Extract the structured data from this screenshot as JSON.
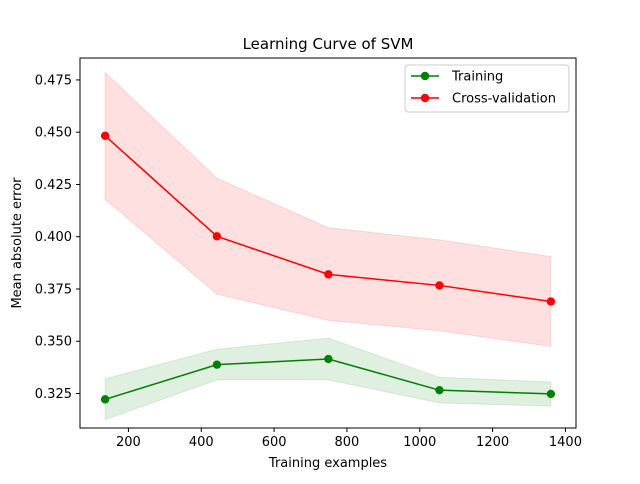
{
  "chart_data": {
    "type": "line",
    "title": "Learning Curve of SVM",
    "xlabel": "Training examples",
    "ylabel": "Mean absolute error",
    "xlim": [
      67,
      1429
    ],
    "ylim": [
      0.3085,
      0.4855
    ],
    "xticks": [
      200,
      400,
      600,
      800,
      1000,
      1200,
      1400
    ],
    "xtick_labels": [
      "200",
      "400",
      "600",
      "800",
      "1000",
      "1200",
      "1400"
    ],
    "yticks": [
      0.325,
      0.35,
      0.375,
      0.4,
      0.425,
      0.45,
      0.475
    ],
    "ytick_labels": [
      "0.325",
      "0.350",
      "0.375",
      "0.400",
      "0.425",
      "0.450",
      "0.475"
    ],
    "x": [
      136,
      443,
      749,
      1054,
      1360
    ],
    "legend_position": "top-right",
    "grid": false,
    "series": [
      {
        "name": "Training",
        "color": "#008000",
        "band_color": "#008000",
        "values": [
          0.3222,
          0.3388,
          0.3415,
          0.3266,
          0.3248
        ],
        "lower": [
          0.3125,
          0.3315,
          0.3315,
          0.3205,
          0.319
        ],
        "upper": [
          0.332,
          0.3462,
          0.3515,
          0.3327,
          0.3305
        ]
      },
      {
        "name": "Cross-validation",
        "color": "#ff0000",
        "band_color": "#ff0000",
        "values": [
          0.4483,
          0.4002,
          0.382,
          0.3767,
          0.369
        ],
        "lower": [
          0.418,
          0.3725,
          0.36,
          0.355,
          0.3475
        ],
        "upper": [
          0.4785,
          0.428,
          0.4043,
          0.3985,
          0.3905
        ]
      }
    ]
  }
}
